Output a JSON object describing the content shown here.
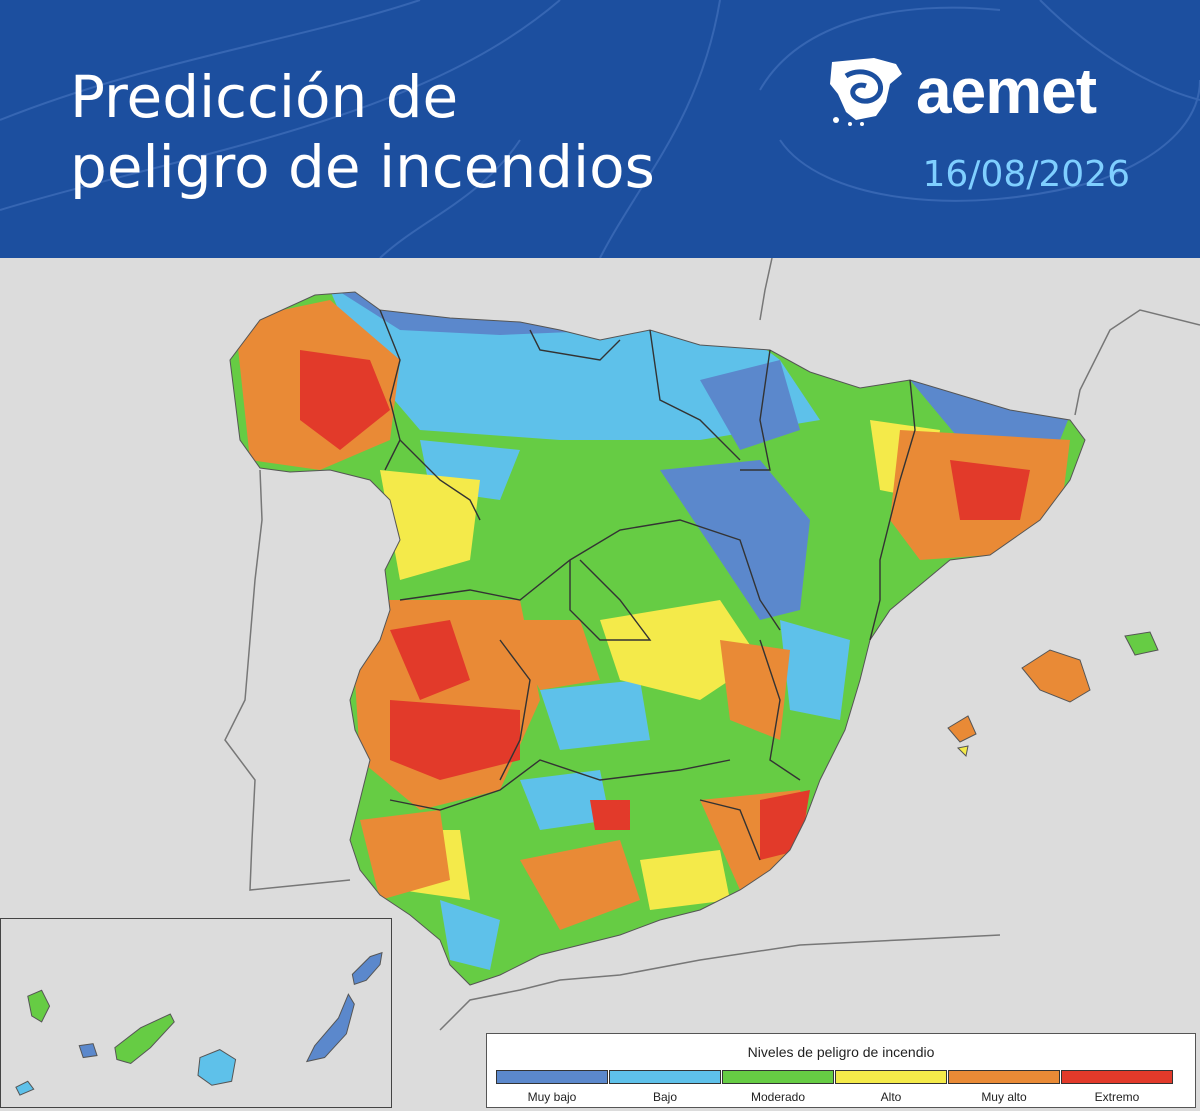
{
  "header": {
    "title_line1": "Predicción de",
    "title_line2": "peligro de incendios",
    "logo_text": "aemet",
    "date": "16/08/2026",
    "background_color": "#1c4f9f",
    "date_color": "#7fcfff"
  },
  "legend": {
    "title": "Niveles de peligro de incendio",
    "levels": [
      {
        "label": "Muy bajo",
        "color": "#5b88cc"
      },
      {
        "label": "Bajo",
        "color": "#5ec1ea"
      },
      {
        "label": "Moderado",
        "color": "#66cc44"
      },
      {
        "label": "Alto",
        "color": "#f4ea4a"
      },
      {
        "label": "Muy alto",
        "color": "#e98a36"
      },
      {
        "label": "Extremo",
        "color": "#e23a2a"
      }
    ]
  }
}
